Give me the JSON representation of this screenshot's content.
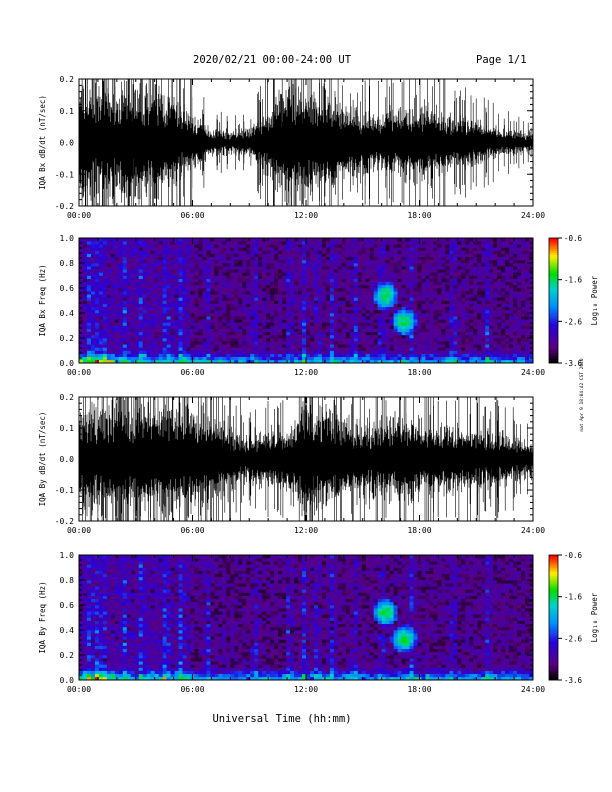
{
  "header": {
    "title": "2020/02/21  00:00-24:00 UT",
    "page": "Page 1/1"
  },
  "footer": {
    "xlabel": "Universal Time (hh:mm)",
    "side_note": "nat Apr 9 18:04:42 CST 2020"
  },
  "chart_data": [
    {
      "type": "line",
      "ylabel": "IQA Bx dB/dt (nT/sec)",
      "ylim": [
        -0.2,
        0.2
      ],
      "yticks": [
        "0.2",
        "0.1",
        "0.0",
        "-0.1",
        "-0.2"
      ],
      "xlim": [
        "00:00",
        "24:00"
      ],
      "xticks": [
        "00:00",
        "06:00",
        "12:00",
        "18:00",
        "24:00"
      ],
      "envelope_hours": [
        0,
        1,
        2,
        3,
        4,
        5,
        6,
        7,
        8,
        9,
        10,
        11,
        12,
        13,
        14,
        15,
        16,
        17,
        18,
        19,
        20,
        21,
        22,
        23,
        24
      ],
      "envelope_amplitude": [
        0.2,
        0.2,
        0.2,
        0.2,
        0.2,
        0.15,
        0.1,
        0.05,
        0.04,
        0.05,
        0.11,
        0.2,
        0.2,
        0.2,
        0.12,
        0.1,
        0.1,
        0.12,
        0.14,
        0.12,
        0.09,
        0.07,
        0.06,
        0.04,
        0.03
      ]
    },
    {
      "type": "heatmap",
      "ylabel": "IQA Bx Freq (Hz)",
      "ylim": [
        0.0,
        1.0
      ],
      "yticks": [
        "1.0",
        "0.8",
        "0.6",
        "0.4",
        "0.2",
        "0.0"
      ],
      "xlim": [
        "00:00",
        "24:00"
      ],
      "xticks": [
        "00:00",
        "06:00",
        "12:00",
        "18:00",
        "24:00"
      ],
      "colorbar_label": "Log₁₀ Power",
      "colorbar_ticks": [
        "-0.6",
        "-1.6",
        "-2.6",
        "-3.6"
      ],
      "colorbar_range": [
        -3.6,
        -0.6
      ],
      "hot_spots": [
        {
          "hour": 16.2,
          "freq": 0.54
        },
        {
          "hour": 17.2,
          "freq": 0.33
        }
      ]
    },
    {
      "type": "line",
      "ylabel": "IQA By dB/dt (nT/sec)",
      "ylim": [
        -0.2,
        0.2
      ],
      "yticks": [
        "0.2",
        "0.1",
        "0.0",
        "-0.1",
        "-0.2"
      ],
      "xlim": [
        "00:00",
        "24:00"
      ],
      "xticks": [
        "00:00",
        "06:00",
        "12:00",
        "18:00",
        "24:00"
      ],
      "envelope_hours": [
        0,
        1,
        2,
        3,
        4,
        5,
        6,
        7,
        8,
        9,
        10,
        11,
        12,
        13,
        14,
        15,
        16,
        17,
        18,
        19,
        20,
        21,
        22,
        23,
        24
      ],
      "envelope_amplitude": [
        0.2,
        0.2,
        0.2,
        0.2,
        0.2,
        0.2,
        0.2,
        0.15,
        0.11,
        0.09,
        0.1,
        0.12,
        0.2,
        0.2,
        0.14,
        0.13,
        0.14,
        0.15,
        0.14,
        0.13,
        0.12,
        0.11,
        0.1,
        0.08,
        0.07
      ]
    },
    {
      "type": "heatmap",
      "ylabel": "IQA By Freq (Hz)",
      "ylim": [
        0.0,
        1.0
      ],
      "yticks": [
        "1.0",
        "0.8",
        "0.6",
        "0.4",
        "0.2",
        "0.0"
      ],
      "xlim": [
        "00:00",
        "24:00"
      ],
      "xticks": [
        "00:00",
        "06:00",
        "12:00",
        "18:00",
        "24:00"
      ],
      "colorbar_label": "Log₁₀ Power",
      "colorbar_ticks": [
        "-0.6",
        "-1.6",
        "-2.6",
        "-3.6"
      ],
      "colorbar_range": [
        -3.6,
        -0.6
      ],
      "hot_spots": [
        {
          "hour": 16.2,
          "freq": 0.54
        },
        {
          "hour": 17.2,
          "freq": 0.33
        }
      ]
    }
  ]
}
